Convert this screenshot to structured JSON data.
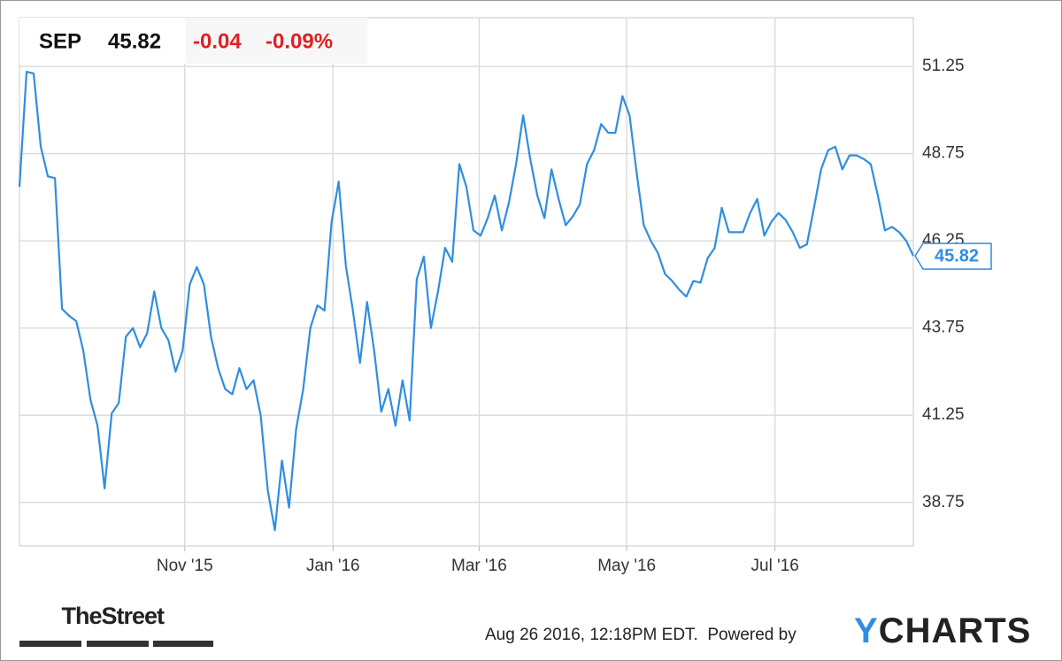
{
  "chart_data": {
    "type": "line",
    "ticker": "SEP",
    "price": "45.82",
    "change": "-0.04",
    "change_percent": "-0.09%",
    "values": [
      47.8,
      51.1,
      51.05,
      48.95,
      48.1,
      48.05,
      44.3,
      44.1,
      43.95,
      43.1,
      41.7,
      40.95,
      39.15,
      41.3,
      41.6,
      43.5,
      43.75,
      43.2,
      43.6,
      44.8,
      43.75,
      43.4,
      42.5,
      43.1,
      45.0,
      45.5,
      45.0,
      43.5,
      42.6,
      42.0,
      41.85,
      42.6,
      42.0,
      42.25,
      41.25,
      39.1,
      37.95,
      39.95,
      38.6,
      40.85,
      42.0,
      43.75,
      44.4,
      44.25,
      46.8,
      47.95,
      45.55,
      44.25,
      42.75,
      44.5,
      43.1,
      41.35,
      42.0,
      40.95,
      42.25,
      41.1,
      45.15,
      45.8,
      43.75,
      44.8,
      46.05,
      45.65,
      48.45,
      47.8,
      46.55,
      46.4,
      46.9,
      47.55,
      46.55,
      47.35,
      48.45,
      49.85,
      48.6,
      47.55,
      46.9,
      48.3,
      47.45,
      46.7,
      46.95,
      47.3,
      48.45,
      48.85,
      49.6,
      49.35,
      49.35,
      50.4,
      49.85,
      48.2,
      46.7,
      46.25,
      45.9,
      45.3,
      45.1,
      44.85,
      44.65,
      45.1,
      45.05,
      45.75,
      46.05,
      47.2,
      46.5,
      46.5,
      46.5,
      47.05,
      47.45,
      46.4,
      46.8,
      47.05,
      46.85,
      46.5,
      46.05,
      46.15,
      47.2,
      48.3,
      48.85,
      48.95,
      48.3,
      48.7,
      48.7,
      48.6,
      48.45,
      47.55,
      46.55,
      46.65,
      46.5,
      46.25,
      45.82
    ],
    "color": "#2f8ee0",
    "xlim": [
      0,
      126
    ],
    "xticks": [
      {
        "value": 23.3,
        "label": "Nov '15"
      },
      {
        "value": 44.2,
        "label": "Jan '16"
      },
      {
        "value": 64.8,
        "label": "Mar '16"
      },
      {
        "value": 85.6,
        "label": "May '16"
      },
      {
        "value": 106.5,
        "label": "Jul '16"
      }
    ],
    "ylim": [
      37.5,
      52.65
    ],
    "yticks": [
      38.75,
      41.25,
      43.75,
      46.25,
      48.75,
      51.25
    ],
    "grid": true,
    "source_logo": "TheStreet",
    "timestamp": "Aug 26 2016, 12:18PM EDT.  Powered by",
    "brand": "YCHARTS"
  }
}
